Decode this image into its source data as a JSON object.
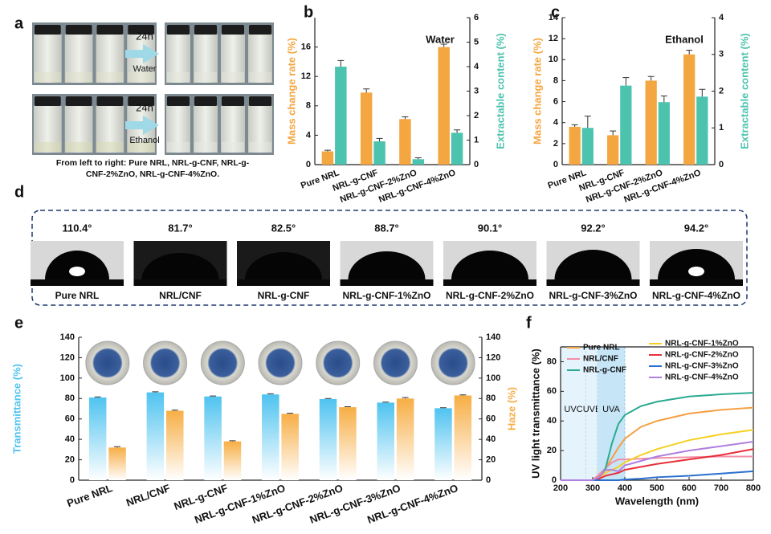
{
  "panel_labels": [
    "a",
    "b",
    "c",
    "d",
    "e",
    "f"
  ],
  "panel_a": {
    "time": [
      "24h",
      "24h"
    ],
    "solvents": [
      "Water",
      "Ethanol"
    ],
    "caption": [
      "From left to right: Pure NRL, NRL-g-CNF, NRL-g-",
      "CNF-2%ZnO, NRL-g-CNF-4%ZnO."
    ]
  },
  "panel_d": {
    "angles": [
      "110.4°",
      "81.7°",
      "82.5°",
      "88.7°",
      "90.1°",
      "92.2°",
      "94.2°"
    ],
    "labels": [
      "Pure NRL",
      "NRL/CNF",
      "NRL-g-CNF",
      "NRL-g-CNF-1%ZnO",
      "NRL-g-CNF-2%ZnO",
      "NRL-g-CNF-3%ZnO",
      "NRL-g-CNF-4%ZnO"
    ]
  },
  "chart_data": [
    {
      "type": "bar",
      "annotation": "Water",
      "categories": [
        "Pure NRL",
        "NRL-g-CNF",
        "NRL-g-CNF-2%ZnO",
        "NRL-g-CNF-4%ZnO"
      ],
      "ylabel": "Mass change rate (%)",
      "y2label": "Extractable content (%)",
      "ylim": [
        0,
        20
      ],
      "yticks": [
        0,
        4,
        8,
        12,
        16
      ],
      "y2lim": [
        0,
        6
      ],
      "y2ticks": [
        0,
        1,
        2,
        3,
        4,
        5,
        6
      ],
      "series": [
        {
          "color": "#f4a640",
          "values": [
            1.8,
            9.8,
            6.2,
            16.0
          ],
          "errors": [
            0.15,
            0.5,
            0.3,
            0.4
          ]
        },
        {
          "color": "#4cc3ae",
          "axis": "y2",
          "values": [
            4.0,
            0.95,
            0.22,
            1.3
          ],
          "errors": [
            0.25,
            0.12,
            0.06,
            0.12
          ]
        }
      ]
    },
    {
      "type": "bar",
      "annotation": "Ethanol",
      "categories": [
        "Pure NRL",
        "NRL-g-CNF",
        "NRL-g-CNF-2%ZnO",
        "NRL-g-CNF-4%ZnO"
      ],
      "ylabel": "Mass change rate (%)",
      "y2label": "Extractable content (%)",
      "ylim": [
        0,
        14
      ],
      "yticks": [
        0,
        2,
        4,
        6,
        8,
        10,
        12,
        14
      ],
      "y2lim": [
        0,
        4
      ],
      "y2ticks": [
        0,
        1,
        2,
        3,
        4
      ],
      "series": [
        {
          "color": "#f4a640",
          "values": [
            3.6,
            2.8,
            8.0,
            10.5
          ],
          "errors": [
            0.2,
            0.4,
            0.4,
            0.4
          ]
        },
        {
          "color": "#4cc3ae",
          "axis": "y2",
          "values": [
            1.0,
            2.15,
            1.7,
            1.85
          ],
          "errors": [
            0.32,
            0.22,
            0.17,
            0.2
          ]
        }
      ]
    },
    {
      "type": "bar",
      "bar_style": "gradient",
      "categories": [
        "Pure NRL",
        "NRL/CNF",
        "NRL-g-CNF",
        "NRL-g-CNF-1%ZnO",
        "NRL-g-CNF-2%ZnO",
        "NRL-g-CNF-3%ZnO",
        "NRL-g-CNF-4%ZnO"
      ],
      "ylabel": "Transmittance (%)",
      "y2label": "Haze (%)",
      "ylim": [
        0,
        140
      ],
      "yticks": [
        0,
        20,
        40,
        60,
        80,
        100,
        120,
        140
      ],
      "y2lim": [
        0,
        140
      ],
      "y2ticks": [
        0,
        20,
        40,
        60,
        80,
        100,
        120,
        140
      ],
      "series": [
        {
          "color": "#4fc3f0",
          "values": [
            81,
            86,
            82,
            84,
            79.5,
            76,
            70.5
          ],
          "errors": [
            0.6,
            0.6,
            0.5,
            0.6,
            0.5,
            0.5,
            0.5
          ]
        },
        {
          "color": "#f7ae45",
          "axis": "y2",
          "values": [
            32,
            68,
            38,
            65,
            71.5,
            80,
            83
          ],
          "errors": [
            0.8,
            0.6,
            0.6,
            0.6,
            0.5,
            1.0,
            0.6
          ]
        }
      ]
    },
    {
      "type": "line",
      "xlabel": "Wavelength (nm)",
      "ylabel": "UV light transmittance (%)",
      "xlim": [
        200,
        800
      ],
      "xticks": [
        200,
        300,
        400,
        500,
        600,
        700,
        800
      ],
      "ylim": [
        0,
        90
      ],
      "yticks": [
        0,
        20,
        40,
        60,
        80
      ],
      "x": [
        200,
        300,
        320,
        340,
        360,
        380,
        400,
        450,
        500,
        600,
        700,
        800
      ],
      "regions": [
        {
          "label": "UVC",
          "range": [
            200,
            280
          ],
          "color": "#e4f3fc"
        },
        {
          "label": "UVB",
          "range": [
            280,
            315
          ],
          "color": "#e4f3fc"
        },
        {
          "label": "UVA",
          "range": [
            315,
            400
          ],
          "color": "#c6e5f7"
        }
      ],
      "series": [
        {
          "name": "Pure NRL",
          "color": "#f5a042",
          "values": [
            0,
            0,
            3,
            8,
            15,
            22,
            28,
            36,
            40,
            45,
            47.5,
            49
          ]
        },
        {
          "name": "NRL/CNF",
          "color": "#f28fa6",
          "values": [
            0,
            0,
            4,
            8,
            12,
            14,
            14,
            14.5,
            15,
            15.5,
            16,
            16
          ]
        },
        {
          "name": "NRL-g-CNF",
          "color": "#2aab90",
          "values": [
            0,
            0,
            1,
            8,
            25,
            38,
            44,
            50,
            53,
            56.5,
            58,
            59
          ]
        },
        {
          "name": "NRL-g-CNF-1%ZnO",
          "color": "#f5d020",
          "values": [
            0,
            0,
            2,
            5,
            7,
            9,
            12,
            17,
            21,
            27,
            31,
            34
          ]
        },
        {
          "name": "NRL-g-CNF-2%ZnO",
          "color": "#e8303a",
          "values": [
            0,
            0,
            1,
            3,
            4,
            5,
            7,
            9,
            11,
            14,
            17,
            21
          ]
        },
        {
          "name": "NRL-g-CNF-3%ZnO",
          "color": "#2a6fcf",
          "values": [
            0,
            0,
            0,
            0,
            0,
            0,
            0.5,
            1,
            2,
            3,
            4.5,
            6
          ]
        },
        {
          "name": "NRL-g-CNF-4%ZnO",
          "color": "#b07fe0",
          "values": [
            0,
            0,
            2,
            7,
            7,
            6,
            10,
            13,
            16,
            20,
            23,
            26
          ]
        }
      ]
    }
  ]
}
